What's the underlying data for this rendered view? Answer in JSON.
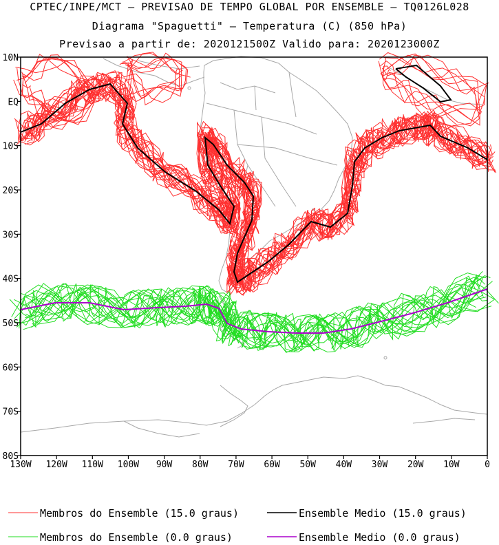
{
  "header": {
    "line1": "CPTEC/INPE/MCT – PREVISAO DE TEMPO GLOBAL POR ENSEMBLE – TQ0126L028",
    "line2": "Diagrama \"Spaguetti\" – Temperatura (C) (850 hPa)",
    "line3": "Previsao a partir de: 2020121500Z  Valido para: 2020123000Z"
  },
  "axes": {
    "lat_ticks": [
      "10N",
      "EQ",
      "10S",
      "20S",
      "30S",
      "40S",
      "50S",
      "60S",
      "70S",
      "80S"
    ],
    "lon_ticks": [
      "130W",
      "120W",
      "110W",
      "100W",
      "90W",
      "80W",
      "70W",
      "60W",
      "50W",
      "40W",
      "30W",
      "20W",
      "10W",
      "0"
    ],
    "lat_range": [
      -80,
      10
    ],
    "lon_range": [
      -130,
      0
    ]
  },
  "legend": [
    {
      "label": "Membros do Ensemble (15.0 graus)",
      "color": "#ff3030"
    },
    {
      "label": "Ensemble Medio (15.0 graus)",
      "color": "#000000"
    },
    {
      "label": "Membros do Ensemble (0.0 graus)",
      "color": "#22dd22"
    },
    {
      "label": "Ensemble Medio (0.0 graus)",
      "color": "#aa00cc"
    }
  ],
  "colors": {
    "coast": "#a8a8a8",
    "members_15": "#ff3030",
    "mean_15": "#000000",
    "members_0": "#22dd22",
    "mean_0": "#aa00cc"
  }
}
